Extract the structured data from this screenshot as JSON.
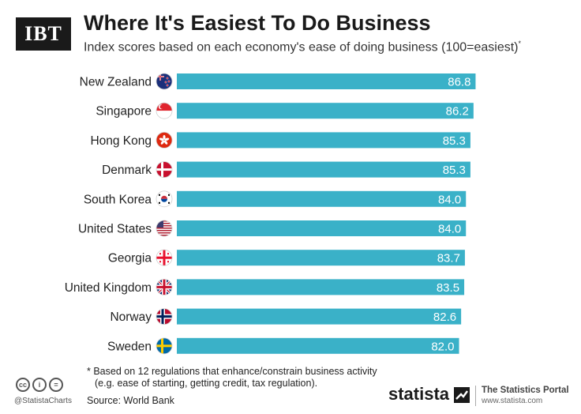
{
  "header": {
    "logo_text": "IBT",
    "title": "Where It's Easiest To Do Business",
    "subtitle": "Index scores based on each economy's ease of doing business (100=easiest)",
    "subtitle_mark": "*"
  },
  "chart_data": {
    "type": "bar",
    "orientation": "horizontal",
    "title": "Where It's Easiest To Do Business",
    "subtitle": "Index scores based on each economy's ease of doing business (100=easiest)*",
    "categories": [
      "New Zealand",
      "Singapore",
      "Hong Kong",
      "Denmark",
      "South Korea",
      "United States",
      "Georgia",
      "United Kingdom",
      "Norway",
      "Sweden"
    ],
    "values": [
      86.8,
      86.2,
      85.3,
      85.3,
      84.0,
      84.0,
      83.7,
      83.5,
      82.6,
      82.0
    ],
    "value_labels": [
      "86.8",
      "86.2",
      "85.3",
      "85.3",
      "84.0",
      "84.0",
      "83.7",
      "83.5",
      "82.6",
      "82.0"
    ],
    "flags": [
      "new-zealand-flag-icon",
      "singapore-flag-icon",
      "hong-kong-flag-icon",
      "denmark-flag-icon",
      "south-korea-flag-icon",
      "united-states-flag-icon",
      "georgia-flag-icon",
      "united-kingdom-flag-icon",
      "norway-flag-icon",
      "sweden-flag-icon"
    ],
    "xlim": [
      0,
      100
    ],
    "bar_color": "#3ab1c8",
    "label_color": "#ffffff",
    "grid": false
  },
  "footer": {
    "footnote_line1": "* Based on 12 regulations that enhance/constrain business activity",
    "footnote_line2": "(e.g. ease of starting, getting credit, tax regulation).",
    "source": "Source: World Bank",
    "handle": "@StatistaCharts",
    "cc_icons": [
      "cc",
      "i",
      "="
    ],
    "brand": "statista",
    "portal_title": "The Statistics Portal",
    "portal_url": "www.statista.com"
  }
}
